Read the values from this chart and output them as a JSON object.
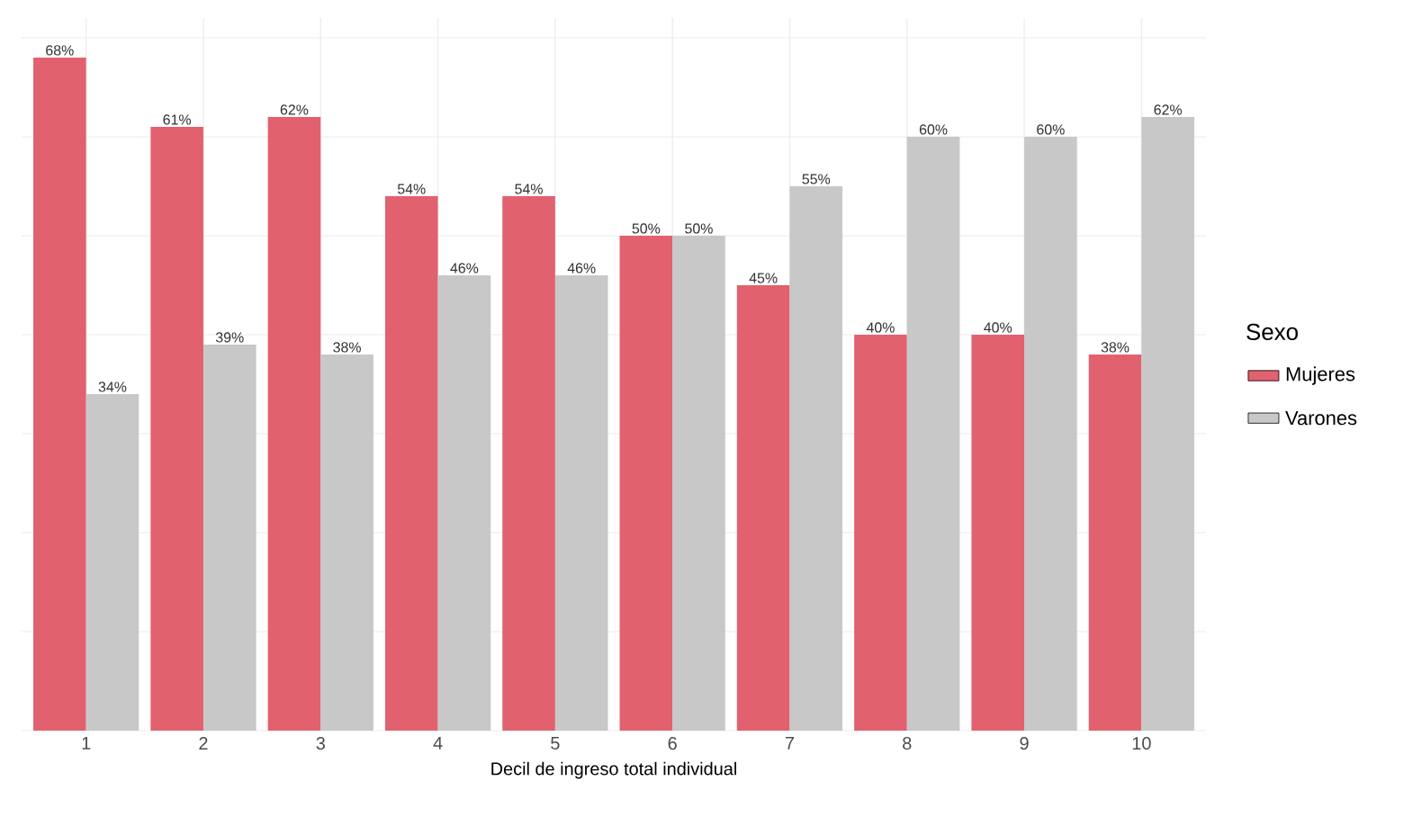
{
  "chart_data": {
    "type": "bar",
    "xlabel": "Decil de ingreso total individual",
    "legend_title": "Sexo",
    "legend": "right",
    "grid": true,
    "tick_labels": "x",
    "categories": [
      "1",
      "2",
      "3",
      "4",
      "5",
      "6",
      "7",
      "8",
      "9",
      "10"
    ],
    "ylim": [
      0,
      72
    ],
    "yticks": [
      {
        "value": 0,
        "label": null
      },
      {
        "value": 10,
        "label": null
      },
      {
        "value": 20,
        "label": null
      },
      {
        "value": 30,
        "label": null
      },
      {
        "value": 40,
        "label": null
      },
      {
        "value": 50,
        "label": null
      },
      {
        "value": 60,
        "label": null
      },
      {
        "value": 70,
        "label": null
      }
    ],
    "series": [
      {
        "name": "Mujeres",
        "color": "#e2616f",
        "values": [
          68,
          61,
          62,
          54,
          54,
          50,
          45,
          40,
          40,
          38
        ],
        "value_labels": [
          "68%",
          "61%",
          "62%",
          "54%",
          "54%",
          "50%",
          "45%",
          "40%",
          "40%",
          "38%"
        ]
      },
      {
        "name": "Varones",
        "color": "#c8c8c8",
        "values": [
          34,
          39,
          38,
          46,
          46,
          50,
          55,
          60,
          60,
          62
        ],
        "value_labels": [
          "34%",
          "39%",
          "38%",
          "46%",
          "46%",
          "50%",
          "55%",
          "60%",
          "60%",
          "62%"
        ]
      }
    ]
  }
}
